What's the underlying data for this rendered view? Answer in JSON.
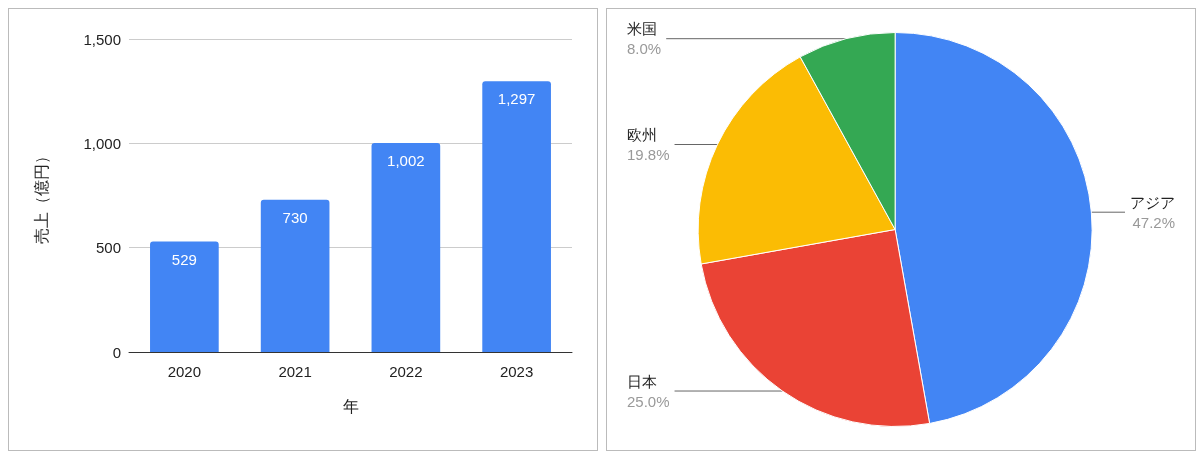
{
  "chart_data": [
    {
      "type": "bar",
      "categories": [
        "2020",
        "2021",
        "2022",
        "2023"
      ],
      "values": [
        529,
        730,
        1002,
        1297
      ],
      "value_labels": [
        "529",
        "730",
        "1,002",
        "1,297"
      ],
      "color": "#4285f4",
      "xlabel": "年",
      "ylabel": "売上（億円）",
      "ylim": [
        0,
        1500
      ],
      "yticks": [
        0,
        {
          "value": 500,
          "label": "500"
        },
        {
          "value": 1000,
          "label": "1,000"
        },
        {
          "value": 1500,
          "label": "1,500"
        }
      ],
      "grid": "y"
    },
    {
      "type": "pie",
      "categories": [
        "アジア",
        "日本",
        "欧州",
        "米国"
      ],
      "values": [
        47.2,
        25.0,
        19.8,
        8.0
      ],
      "value_labels": [
        "47.2%",
        "25.0%",
        "19.8%",
        "8.0%"
      ],
      "colors": [
        "#4285f4",
        "#ea4335",
        "#fbbc04",
        "#34a853"
      ]
    }
  ]
}
